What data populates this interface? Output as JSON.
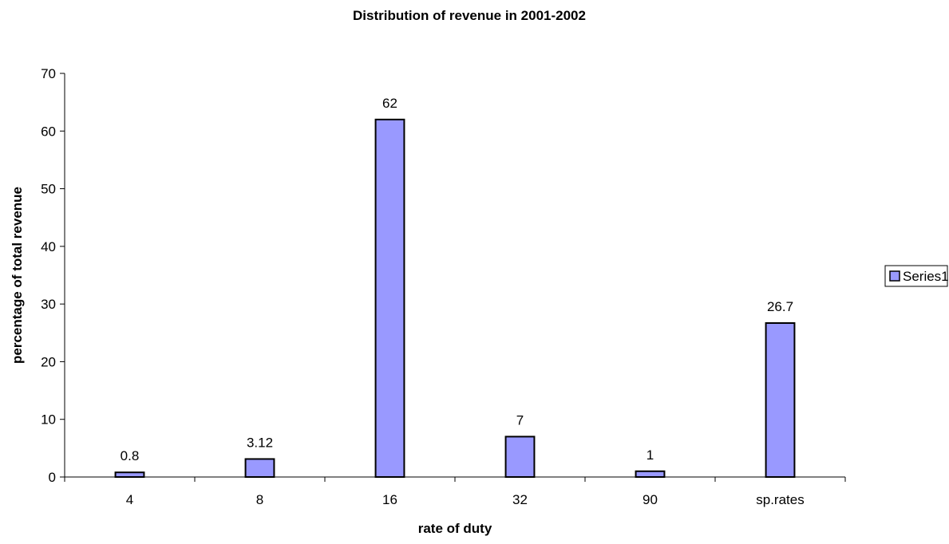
{
  "chart_data": {
    "type": "bar",
    "title": "Distribution of revenue in 2001-2002",
    "xlabel": "rate of duty",
    "ylabel": "percentage of total revenue",
    "categories": [
      "4",
      "8",
      "16",
      "32",
      "90",
      "sp.rates"
    ],
    "series": [
      {
        "name": "Series1",
        "values": [
          0.8,
          3.12,
          62,
          7,
          1,
          26.7
        ],
        "data_labels": [
          "0.8",
          "3.12",
          "62",
          "7",
          "1",
          "26.7"
        ]
      }
    ],
    "ylim": [
      0,
      70
    ],
    "yticks": [
      0,
      10,
      20,
      30,
      40,
      50,
      60,
      70
    ],
    "grid": false,
    "legend": "right",
    "colors": {
      "bar_fill": "#9999ff",
      "bar_stroke": "#000000"
    }
  }
}
